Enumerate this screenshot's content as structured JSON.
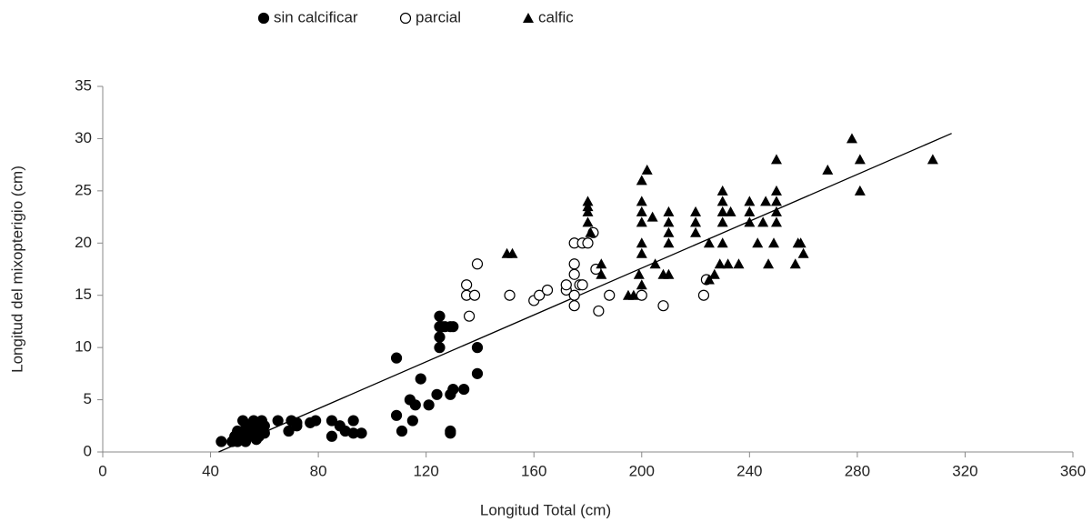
{
  "chart_data": {
    "type": "scatter",
    "x_label": "Longitud Total (cm)",
    "y_label": "Longitud del mixopterigio (cm)",
    "xlim": [
      0,
      360
    ],
    "xticks": [
      0,
      40,
      80,
      120,
      160,
      200,
      240,
      280,
      320,
      360
    ],
    "ylim": [
      0,
      35
    ],
    "yticks": [
      0,
      5,
      10,
      15,
      20,
      25,
      30,
      35
    ],
    "grid": false,
    "legend": "top",
    "series": [
      {
        "name": "sin calcificar",
        "color": "#000000",
        "marker": "circle",
        "x": [
          44,
          48,
          49,
          50,
          50,
          51,
          52,
          52,
          53,
          53,
          54,
          55,
          55,
          56,
          56,
          57,
          57,
          58,
          58,
          59,
          59,
          60,
          60,
          65,
          69,
          70,
          72,
          72,
          77,
          79,
          85,
          85,
          88,
          90,
          93,
          93,
          96,
          109,
          109,
          111,
          114,
          115,
          116,
          118,
          121,
          124,
          125,
          125,
          125,
          125,
          126,
          127,
          129,
          129,
          129,
          129,
          130,
          130,
          134,
          139,
          139
        ],
        "y": [
          1,
          1,
          1.5,
          1,
          2,
          1.5,
          3,
          2,
          1,
          2,
          1.5,
          2.5,
          1.8,
          3,
          1.5,
          2,
          1.2,
          2.5,
          1.5,
          3,
          2,
          2.5,
          1.8,
          3,
          2,
          3,
          2.5,
          2.8,
          2.8,
          3,
          3,
          1.5,
          2.5,
          2,
          3,
          1.8,
          1.8,
          3.5,
          9,
          2,
          5,
          3,
          4.5,
          7,
          4.5,
          5.5,
          13,
          12,
          11,
          10,
          12,
          12,
          12,
          2,
          1.8,
          5.5,
          12,
          6,
          6,
          10,
          7.5
        ]
      },
      {
        "name": "parcial",
        "color": "#000000",
        "marker": "open-circle",
        "x": [
          135,
          135,
          136,
          138,
          139,
          151,
          160,
          162,
          165,
          172,
          172,
          175,
          175,
          175,
          175,
          175,
          177,
          178,
          178,
          180,
          182,
          183,
          184,
          188,
          200,
          208,
          223,
          224
        ],
        "y": [
          16,
          15,
          13,
          15,
          18,
          15,
          14.5,
          15,
          15.5,
          15.5,
          16,
          20,
          18,
          17,
          15,
          14,
          16,
          20,
          16,
          20,
          21,
          17.5,
          13.5,
          15,
          15,
          14,
          15,
          16.5
        ]
      },
      {
        "name": "calfic",
        "color": "#000000",
        "marker": "triangle",
        "x": [
          150,
          152,
          180,
          180,
          180,
          180,
          181,
          185,
          185,
          195,
          197,
          199,
          200,
          200,
          200,
          200,
          200,
          200,
          200,
          202,
          204,
          205,
          208,
          210,
          210,
          210,
          210,
          210,
          220,
          220,
          220,
          225,
          225,
          227,
          229,
          230,
          230,
          230,
          230,
          230,
          232,
          233,
          236,
          240,
          240,
          240,
          243,
          245,
          246,
          247,
          249,
          250,
          250,
          250,
          250,
          250,
          257,
          258,
          259,
          260,
          269,
          278,
          281,
          281,
          308
        ],
        "y": [
          19,
          19,
          23.5,
          24,
          23,
          22,
          21,
          18,
          17,
          15,
          15,
          17,
          26,
          24,
          23,
          22,
          20,
          19,
          16,
          27,
          22.5,
          18,
          17,
          23,
          22,
          21,
          20,
          17,
          23,
          22,
          21,
          20,
          16.5,
          17,
          18,
          25,
          24,
          23,
          22,
          20,
          18,
          23,
          18,
          24,
          23,
          22,
          20,
          22,
          24,
          18,
          20,
          28,
          25,
          24,
          23,
          22,
          18,
          20,
          20,
          19,
          27,
          30,
          28,
          25,
          28
        ]
      }
    ],
    "trendline": {
      "x": [
        43,
        315
      ],
      "y": [
        0,
        30.5
      ]
    }
  }
}
